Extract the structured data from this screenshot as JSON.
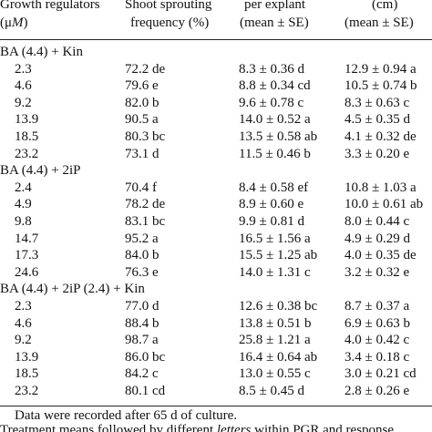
{
  "header": {
    "columns": [
      {
        "line1": "Growth regulators",
        "line2": {
          "pre": "(μ",
          "italic": "M",
          "post": ")"
        }
      },
      {
        "line1": "Shoot sprouting",
        "line2": "frequency (%)"
      },
      {
        "line1": "per explant",
        "line2": "(mean ± SE)"
      },
      {
        "line1": "(cm)",
        "line2": "(mean ± SE)"
      }
    ]
  },
  "table": {
    "groups": [
      {
        "label": "BA (4.4) + Kin",
        "rows": [
          [
            "2.3",
            "72.2 de",
            "8.3 ± 0.36 d",
            "12.9 ± 0.94 a"
          ],
          [
            "4.6",
            "79.6 e",
            "8.8 ± 0.34 cd",
            "10.5 ± 0.74 b"
          ],
          [
            "9.2",
            "82.0 b",
            "9.6 ± 0.78 c",
            "8.3 ± 0.63 c"
          ],
          [
            "13.9",
            "90.5 a",
            "14.0 ± 0.52 a",
            "4.5 ± 0.35 d"
          ],
          [
            "18.5",
            "80.3 bc",
            "13.5 ± 0.58 ab",
            "4.1 ± 0.32 de"
          ],
          [
            "23.2",
            "73.1 d",
            "11.5 ± 0.46 b",
            "3.3 ± 0.20 e"
          ]
        ]
      },
      {
        "label": "BA (4.4) + 2iP",
        "rows": [
          [
            "2.4",
            "70.4 f",
            "8.4 ± 0.58 ef",
            "10.8 ± 1.03 a"
          ],
          [
            "4.9",
            "78.2 de",
            "8.9 ± 0.60 e",
            "10.0 ± 0.61 ab"
          ],
          [
            "9.8",
            "83.1 bc",
            "9.9 ± 0.81 d",
            "8.0 ± 0.44 c"
          ],
          [
            "14.7",
            "95.2 a",
            "16.5 ± 1.56 a",
            "4.9 ± 0.29 d"
          ],
          [
            "17.3",
            "84.0 b",
            "15.5 ± 1.25 ab",
            "4.0 ± 0.35 de"
          ],
          [
            "24.6",
            "76.3 e",
            "14.0 ± 1.31 c",
            "3.2 ± 0.32 e"
          ]
        ]
      },
      {
        "label": "BA (4.4) + 2iP (2.4) + Kin",
        "rows": [
          [
            "2.3",
            "77.0 d",
            "12.6 ± 0.38 bc",
            "8.7 ± 0.37 a"
          ],
          [
            "4.6",
            "88.4 b",
            "13.8 ± 0.51 b",
            "6.9 ± 0.63 b"
          ],
          [
            "9.2",
            "98.7 a",
            "25.8 ± 1.21 a",
            "4.0 ± 0.42 c"
          ],
          [
            "13.9",
            "86.0 bc",
            "16.4 ± 0.64 ab",
            "3.4 ± 0.18 c"
          ],
          [
            "18.5",
            "84.2 c",
            "13.0 ± 0.55 c",
            "3.0 ± 0.21 cd"
          ],
          [
            "23.2",
            "80.1 cd",
            "8.5 ± 0.45 d",
            "2.8 ± 0.26 e"
          ]
        ]
      }
    ]
  },
  "footnotes": {
    "note1": "Data were recorded after 65 d of culture.",
    "note2": {
      "pre": "Treatment means followed by different ",
      "italic": "letters",
      "post": " within PGR and response"
    }
  }
}
